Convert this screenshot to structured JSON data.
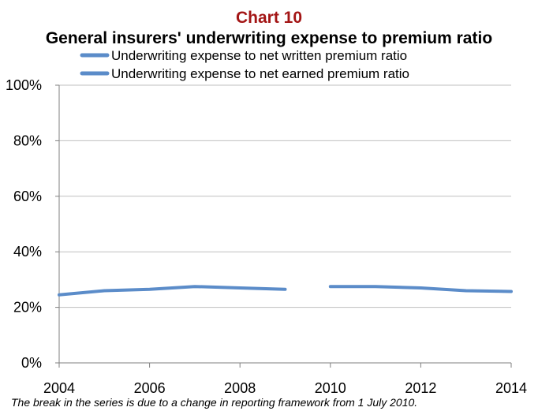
{
  "chart_data": {
    "type": "line",
    "title": "Chart 10",
    "subtitle": "General insurers' underwriting expense to premium ratio",
    "xlabel": "",
    "ylabel": "",
    "x_ticks": [
      "2004",
      "2006",
      "2008",
      "2010",
      "2012",
      "2014"
    ],
    "y_ticks": [
      "0%",
      "20%",
      "40%",
      "60%",
      "80%",
      "100%"
    ],
    "xlim": [
      2004,
      2014
    ],
    "ylim": [
      0,
      100
    ],
    "grid": true,
    "legend_position": "top",
    "series": [
      {
        "name": "Underwriting expense to net written premium ratio",
        "x": [
          2004,
          2005,
          2006,
          2007,
          2008,
          2009
        ],
        "values": [
          24.5,
          26,
          26.5,
          27.5,
          27,
          26.5
        ]
      },
      {
        "name": "Underwriting expense to net earned premium ratio",
        "x": [
          2010,
          2011,
          2012,
          2013,
          2014
        ],
        "values": [
          27.5,
          27.5,
          27,
          26,
          25.7
        ]
      }
    ],
    "footnote": "The break in the series is due to a change in reporting framework from 1 July 2010.",
    "colors": {
      "title": "#a31515",
      "series": "#5b8cc9",
      "grid": "#bfbfbf",
      "axis": "#7f7f7f"
    }
  }
}
